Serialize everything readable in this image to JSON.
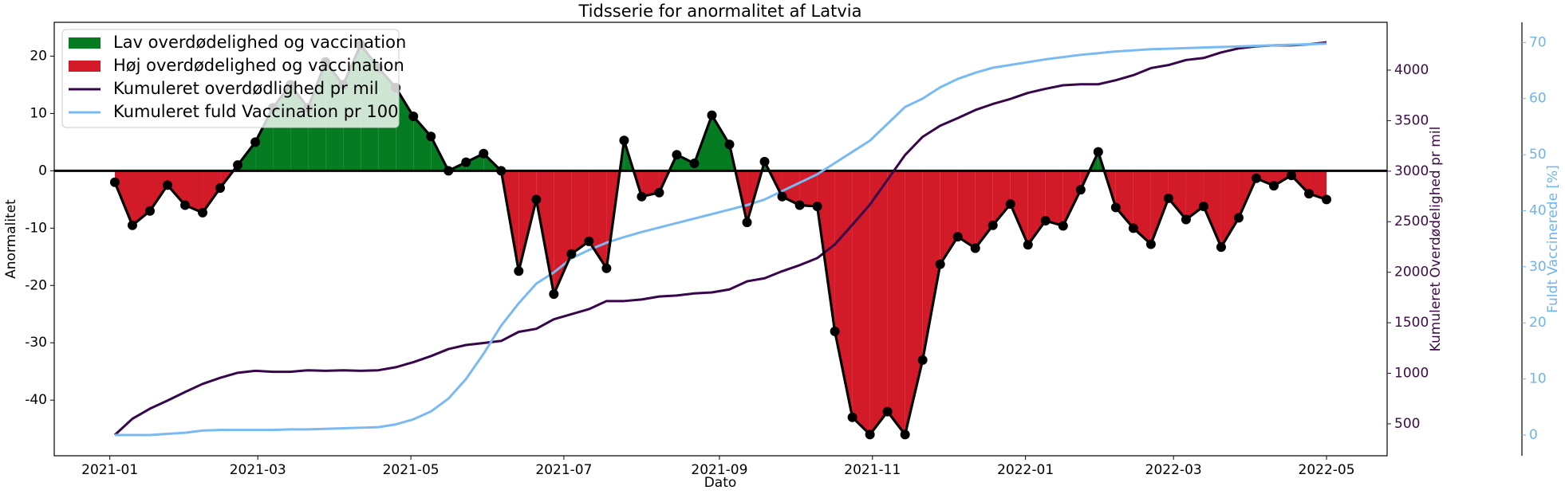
{
  "chart_data": {
    "type": "line",
    "title": "Tidsserie for anormalitet af Latvia",
    "xlabel": "Dato",
    "ylabel": "Anormalitet",
    "y2label": "Kumuleret Overdødelighed pr mil",
    "y3label": "Fuldt Vaccinerede [%]",
    "x": [
      "2021-01-03",
      "2021-01-10",
      "2021-01-17",
      "2021-01-24",
      "2021-01-31",
      "2021-02-07",
      "2021-02-14",
      "2021-02-21",
      "2021-02-28",
      "2021-03-07",
      "2021-03-14",
      "2021-03-21",
      "2021-03-28",
      "2021-04-04",
      "2021-04-11",
      "2021-04-18",
      "2021-04-25",
      "2021-05-02",
      "2021-05-09",
      "2021-05-16",
      "2021-05-23",
      "2021-05-30",
      "2021-06-06",
      "2021-06-13",
      "2021-06-20",
      "2021-06-27",
      "2021-07-04",
      "2021-07-11",
      "2021-07-18",
      "2021-07-25",
      "2021-08-01",
      "2021-08-08",
      "2021-08-15",
      "2021-08-22",
      "2021-08-29",
      "2021-09-05",
      "2021-09-12",
      "2021-09-19",
      "2021-09-26",
      "2021-10-03",
      "2021-10-10",
      "2021-10-17",
      "2021-10-24",
      "2021-10-31",
      "2021-11-07",
      "2021-11-14",
      "2021-11-21",
      "2021-11-28",
      "2021-12-05",
      "2021-12-12",
      "2021-12-19",
      "2021-12-26",
      "2022-01-02",
      "2022-01-09",
      "2022-01-16",
      "2022-01-23",
      "2022-01-30",
      "2022-02-06",
      "2022-02-13",
      "2022-02-20",
      "2022-02-27",
      "2022-03-06",
      "2022-03-13",
      "2022-03-20",
      "2022-03-27",
      "2022-04-03",
      "2022-04-10",
      "2022-04-17",
      "2022-04-24",
      "2022-05-01"
    ],
    "xticks": [
      "2021-01",
      "2021-03",
      "2021-05",
      "2021-07",
      "2021-09",
      "2021-11",
      "2022-01",
      "2022-03",
      "2022-05"
    ],
    "ylim": [
      -49.7,
      25.9
    ],
    "yticks": [
      -40,
      -30,
      -20,
      -10,
      0,
      10,
      20
    ],
    "y2lim": [
      184,
      4473
    ],
    "y2ticks": [
      500,
      1000,
      1500,
      2000,
      2500,
      3000,
      3500,
      4000
    ],
    "y2color": "#3b0a45",
    "y3lim": [
      -3.7,
      73.6
    ],
    "y3ticks": [
      0,
      10,
      20,
      30,
      40,
      50,
      60,
      70
    ],
    "y3color": "#6cb4f0",
    "baseline": 0,
    "legend": "upper left",
    "series": [
      {
        "color": "#000000",
        "values": [
          -2,
          -9.5,
          -7,
          -2.5,
          -6,
          -7.3,
          -3,
          1,
          5,
          11,
          15,
          11,
          19,
          15,
          22,
          18,
          14.5,
          9.5,
          6,
          0,
          1.5,
          3,
          0,
          -17.5,
          -5,
          -21.5,
          -14.5,
          -12.3,
          -17,
          5.3,
          -4.5,
          -3.8,
          2.8,
          1.3,
          9.7,
          4.6,
          -9,
          1.6,
          -4.5,
          -6,
          -6.2,
          -28,
          -43,
          -46,
          -42,
          -46,
          -33,
          -16.3,
          -11.5,
          -13.5,
          -9.5,
          -5.8,
          -12.9,
          -8.7,
          -9.6,
          -3.3,
          3.3,
          -6.4,
          -10,
          -12.8,
          -4.8,
          -8.5,
          -6.2,
          -13.3,
          -8.2,
          -1.3,
          -2.6,
          -0.8,
          -4,
          -5
        ],
        "fill_positive": {
          "name": "Lav overdødelighed og vaccination",
          "color": "#067c22"
        },
        "fill_negative": {
          "name": "Høj overdødelighed og vaccination",
          "color": "#d21a28"
        }
      },
      {
        "name": "Kumuleret overdødlighed pr mil",
        "color": "#36054a",
        "axis": "y2",
        "values": [
          390,
          550,
          650,
          730,
          815,
          895,
          955,
          1005,
          1025,
          1015,
          1015,
          1030,
          1025,
          1030,
          1025,
          1030,
          1060,
          1110,
          1170,
          1240,
          1280,
          1300,
          1320,
          1410,
          1440,
          1535,
          1585,
          1635,
          1715,
          1715,
          1730,
          1760,
          1770,
          1790,
          1800,
          1830,
          1910,
          1940,
          2010,
          2070,
          2140,
          2275,
          2470,
          2670,
          2915,
          3160,
          3340,
          3450,
          3525,
          3605,
          3665,
          3715,
          3775,
          3815,
          3850,
          3860,
          3860,
          3900,
          3950,
          4020,
          4050,
          4100,
          4120,
          4175,
          4215,
          4235,
          4245,
          4245,
          4255,
          4275
        ]
      },
      {
        "name": "Kumuleret fuld Vaccination pr 100",
        "color": "#7abaf2",
        "axis": "y3",
        "values": [
          0,
          0,
          0,
          0.2,
          0.4,
          0.8,
          0.9,
          0.9,
          0.9,
          0.9,
          1,
          1,
          1.1,
          1.2,
          1.3,
          1.4,
          1.9,
          2.8,
          4.2,
          6.5,
          10,
          14.5,
          19.5,
          23.5,
          27,
          29,
          31.5,
          33,
          34.3,
          35.3,
          36.2,
          37,
          37.8,
          38.6,
          39.4,
          40.2,
          41,
          42,
          43.5,
          45,
          46.5,
          48.5,
          50.5,
          52.5,
          55.5,
          58.5,
          60,
          62,
          63.5,
          64.6,
          65.5,
          66,
          66.5,
          67,
          67.4,
          67.8,
          68.1,
          68.4,
          68.6,
          68.8,
          68.9,
          69,
          69.1,
          69.2,
          69.3,
          69.4,
          69.5,
          69.6,
          69.7,
          69.8
        ]
      }
    ]
  }
}
